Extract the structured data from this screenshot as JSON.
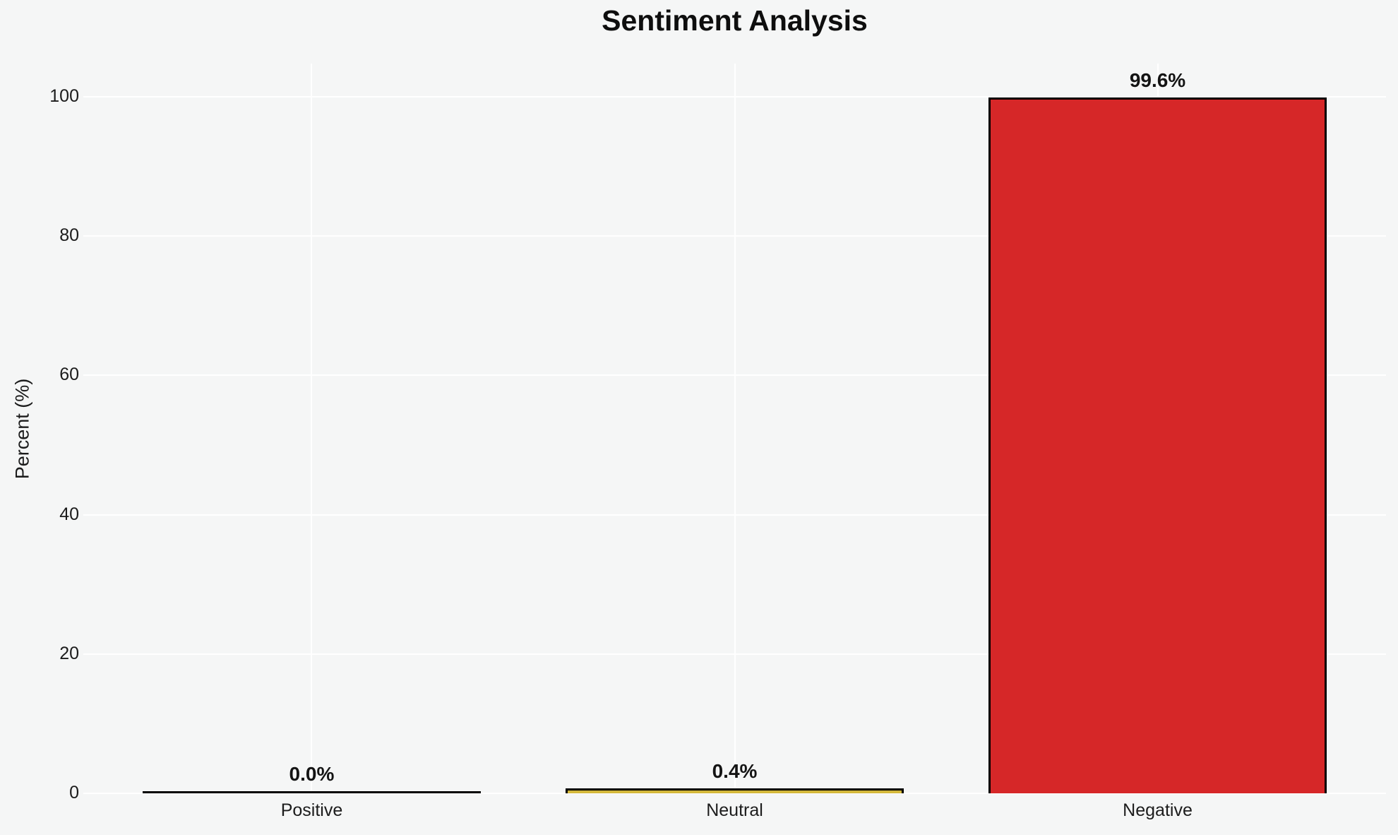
{
  "chart_data": {
    "type": "bar",
    "title": "Sentiment Analysis",
    "xlabel": "",
    "ylabel": "Percent (%)",
    "categories": [
      "Positive",
      "Neutral",
      "Negative"
    ],
    "values": [
      0.0,
      0.4,
      99.6
    ],
    "value_labels": [
      "0.0%",
      "0.4%",
      "99.6%"
    ],
    "yticks": [
      0,
      20,
      40,
      60,
      80,
      100
    ],
    "ylim": [
      0,
      104.75
    ],
    "grid": "horizontal white lines at y-ticks and vertical white lines at each category center",
    "legend_position": "none",
    "bar_fill_colors": [
      "none",
      "#d4b83c",
      "#d62728"
    ],
    "bar_edge_color": "#000000"
  },
  "style": {
    "background_color": "#f5f6f6",
    "grid_color": "#ffffff",
    "title_color": "#0e0e0e",
    "text_color": "#1c1c1c"
  }
}
